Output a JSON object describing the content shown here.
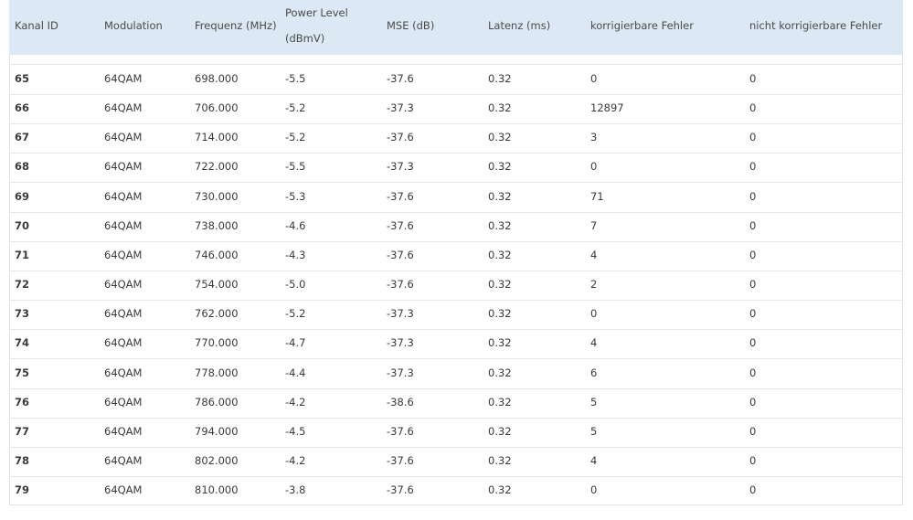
{
  "table": {
    "columns": [
      "Kanal ID",
      "Modulation",
      "Frequenz (MHz)",
      "Power Level (dBmV)",
      "MSE (dB)",
      "Latenz (ms)",
      "korrigierbare Fehler",
      "nicht korrigierbare Fehler"
    ],
    "rows": [
      [
        "65",
        "64QAM",
        "698.000",
        "-5.5",
        "-37.6",
        "0.32",
        "0",
        "0"
      ],
      [
        "66",
        "64QAM",
        "706.000",
        "-5.2",
        "-37.3",
        "0.32",
        "12897",
        "0"
      ],
      [
        "67",
        "64QAM",
        "714.000",
        "-5.2",
        "-37.6",
        "0.32",
        "3",
        "0"
      ],
      [
        "68",
        "64QAM",
        "722.000",
        "-5.5",
        "-37.3",
        "0.32",
        "0",
        "0"
      ],
      [
        "69",
        "64QAM",
        "730.000",
        "-5.3",
        "-37.6",
        "0.32",
        "71",
        "0"
      ],
      [
        "70",
        "64QAM",
        "738.000",
        "-4.6",
        "-37.6",
        "0.32",
        "7",
        "0"
      ],
      [
        "71",
        "64QAM",
        "746.000",
        "-4.3",
        "-37.6",
        "0.32",
        "4",
        "0"
      ],
      [
        "72",
        "64QAM",
        "754.000",
        "-5.0",
        "-37.6",
        "0.32",
        "2",
        "0"
      ],
      [
        "73",
        "64QAM",
        "762.000",
        "-5.2",
        "-37.3",
        "0.32",
        "0",
        "0"
      ],
      [
        "74",
        "64QAM",
        "770.000",
        "-4.7",
        "-37.3",
        "0.32",
        "4",
        "0"
      ],
      [
        "75",
        "64QAM",
        "778.000",
        "-4.4",
        "-37.3",
        "0.32",
        "6",
        "0"
      ],
      [
        "76",
        "64QAM",
        "786.000",
        "-4.2",
        "-38.6",
        "0.32",
        "5",
        "0"
      ],
      [
        "77",
        "64QAM",
        "794.000",
        "-4.5",
        "-37.6",
        "0.32",
        "5",
        "0"
      ],
      [
        "78",
        "64QAM",
        "802.000",
        "-4.2",
        "-37.6",
        "0.32",
        "4",
        "0"
      ],
      [
        "79",
        "64QAM",
        "810.000",
        "-3.8",
        "-37.6",
        "0.32",
        "0",
        "0"
      ]
    ]
  }
}
